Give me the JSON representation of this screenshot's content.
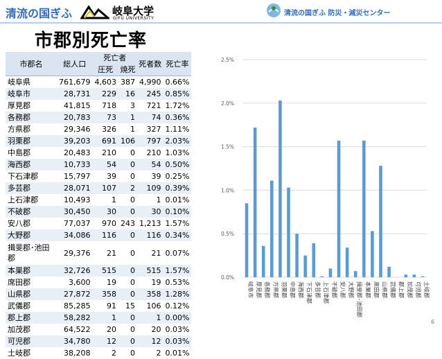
{
  "header": {
    "left_logo": "清流の国ぎふ",
    "university_name": "岐阜大学",
    "university_sub": "GIFU UNIVERSITY",
    "center_name": "清流の国ぎふ 防災・減災センター"
  },
  "page_title": "市郡別死亡率",
  "table": {
    "headers": {
      "name": "市郡名",
      "population": "総人口",
      "deaths": "死亡者",
      "crushed": "圧死",
      "burned": "焼死",
      "dead_count": "死者数",
      "rate": "死亡率"
    },
    "rows": [
      {
        "name": "岐阜県",
        "population": "761,679",
        "crushed": "4,603",
        "burned": "387",
        "dead": "4,990",
        "rate": "0.66%"
      },
      {
        "name": "岐阜市",
        "population": "28,731",
        "crushed": "229",
        "burned": "16",
        "dead": "245",
        "rate": "0.85%"
      },
      {
        "name": "厚見郡",
        "population": "41,815",
        "crushed": "718",
        "burned": "3",
        "dead": "721",
        "rate": "1.72%"
      },
      {
        "name": "各務郡",
        "population": "20,783",
        "crushed": "73",
        "burned": "1",
        "dead": "74",
        "rate": "0.36%"
      },
      {
        "name": "方県郡",
        "population": "29,346",
        "crushed": "326",
        "burned": "1",
        "dead": "327",
        "rate": "1.11%"
      },
      {
        "name": "羽栗郡",
        "population": "39,203",
        "crushed": "691",
        "burned": "106",
        "dead": "797",
        "rate": "2.03%"
      },
      {
        "name": "中島郡",
        "population": "20,483",
        "crushed": "210",
        "burned": "0",
        "dead": "210",
        "rate": "1.03%"
      },
      {
        "name": "海西郡",
        "population": "10,733",
        "crushed": "54",
        "burned": "0",
        "dead": "54",
        "rate": "0.50%"
      },
      {
        "name": "下石津郡",
        "population": "15,797",
        "crushed": "39",
        "burned": "0",
        "dead": "39",
        "rate": "0.25%"
      },
      {
        "name": "多芸郡",
        "population": "28,071",
        "crushed": "107",
        "burned": "2",
        "dead": "109",
        "rate": "0.39%"
      },
      {
        "name": "上石津郡",
        "population": "10,493",
        "crushed": "1",
        "burned": "0",
        "dead": "1",
        "rate": "0.01%"
      },
      {
        "name": "不破郡",
        "population": "30,450",
        "crushed": "30",
        "burned": "0",
        "dead": "30",
        "rate": "0.10%"
      },
      {
        "name": "安八郡",
        "population": "77,037",
        "crushed": "970",
        "burned": "243",
        "dead": "1,213",
        "rate": "1.57%"
      },
      {
        "name": "大野郡",
        "population": "34,086",
        "crushed": "116",
        "burned": "0",
        "dead": "116",
        "rate": "0.34%"
      },
      {
        "name": "揖斐郡･池田郡",
        "population": "29,376",
        "crushed": "21",
        "burned": "0",
        "dead": "21",
        "rate": "0.07%"
      },
      {
        "name": "本巣郡",
        "population": "32,726",
        "crushed": "515",
        "burned": "0",
        "dead": "515",
        "rate": "1.57%"
      },
      {
        "name": "席田郡",
        "population": "3,600",
        "crushed": "19",
        "burned": "0",
        "dead": "19",
        "rate": "0.53%"
      },
      {
        "name": "山県郡",
        "population": "27,872",
        "crushed": "358",
        "burned": "0",
        "dead": "358",
        "rate": "1.28%"
      },
      {
        "name": "武儀郡",
        "population": "85,285",
        "crushed": "91",
        "burned": "15",
        "dead": "106",
        "rate": "0.12%"
      },
      {
        "name": "郡上郡",
        "population": "58,282",
        "crushed": "1",
        "burned": "0",
        "dead": "1",
        "rate": "0.00%"
      },
      {
        "name": "加茂郡",
        "population": "64,522",
        "crushed": "20",
        "burned": "0",
        "dead": "20",
        "rate": "0.03%"
      },
      {
        "name": "可児郡",
        "population": "34,780",
        "crushed": "12",
        "burned": "0",
        "dead": "12",
        "rate": "0.03%"
      },
      {
        "name": "土岐郡",
        "population": "38,208",
        "crushed": "2",
        "burned": "0",
        "dead": "2",
        "rate": "0.01%"
      }
    ]
  },
  "chart_data": {
    "type": "bar",
    "title": "",
    "xlabel": "",
    "ylabel": "",
    "ylim": [
      0,
      0.025
    ],
    "yticks": [
      "0.0%",
      "0.5%",
      "1.0%",
      "1.5%",
      "2.0%",
      "2.5%"
    ],
    "categories": [
      "岐阜市",
      "厚見郡",
      "各務郡",
      "方県郡",
      "羽栗郡",
      "中島郡",
      "海西郡",
      "下石津郡",
      "多芸郡",
      "上石津郡",
      "不破郡",
      "安八郡",
      "大野郡",
      "揖斐郡･池田郡",
      "本巣郡",
      "席田郡",
      "山県郡",
      "武儀郡",
      "郡上郡",
      "加茂郡",
      "可児郡",
      "土岐郡"
    ],
    "values": [
      0.0085,
      0.0172,
      0.0036,
      0.0111,
      0.0203,
      0.0103,
      0.005,
      0.0025,
      0.0039,
      0.0001,
      0.001,
      0.0157,
      0.0034,
      0.0007,
      0.0157,
      0.0053,
      0.0128,
      0.0012,
      0.0,
      0.0003,
      0.0003,
      0.0001
    ],
    "bar_color": "#5b9bd5",
    "grid": true
  },
  "page_number": "6"
}
